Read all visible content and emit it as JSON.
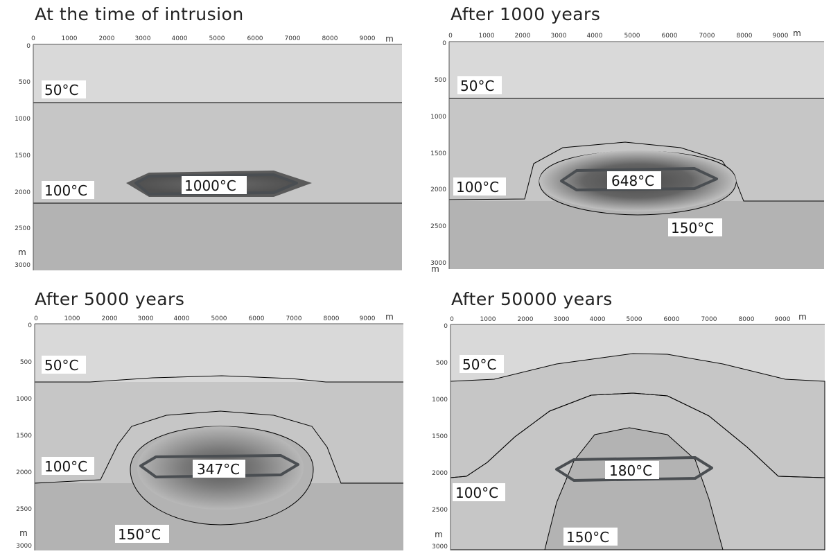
{
  "panels": [
    {
      "title": "At the time of intrusion",
      "center_label": "1000°C",
      "labels": {
        "t50": "50°C",
        "t100": "100°C"
      }
    },
    {
      "title": "After 1000 years",
      "center_label": "648°C",
      "labels": {
        "t50": "50°C",
        "t100": "100°C",
        "t150": "150°C"
      }
    },
    {
      "title": "After 5000 years",
      "center_label": "347°C",
      "labels": {
        "t50": "50°C",
        "t100": "100°C",
        "t150": "150°C"
      }
    },
    {
      "title": "After 50000 years",
      "center_label": "180°C",
      "labels": {
        "t50": "50°C",
        "t100": "100°C",
        "t150": "150°C"
      }
    }
  ],
  "x_axis": {
    "ticks": [
      "0",
      "1000",
      "2000",
      "3000",
      "4000",
      "5000",
      "6000",
      "7000",
      "8000",
      "9000"
    ],
    "unit": "m"
  },
  "y_axis": {
    "ticks": [
      "0",
      "500",
      "1000",
      "1500",
      "2000",
      "2500",
      "3000"
    ],
    "unit": "m"
  },
  "colors": {
    "zone_50": "#d9d9d9",
    "zone_100": "#c6c6c6",
    "zone_150": "#b3b3b3",
    "body_outline": "#4a4e52",
    "hot_core": "#505050"
  }
}
